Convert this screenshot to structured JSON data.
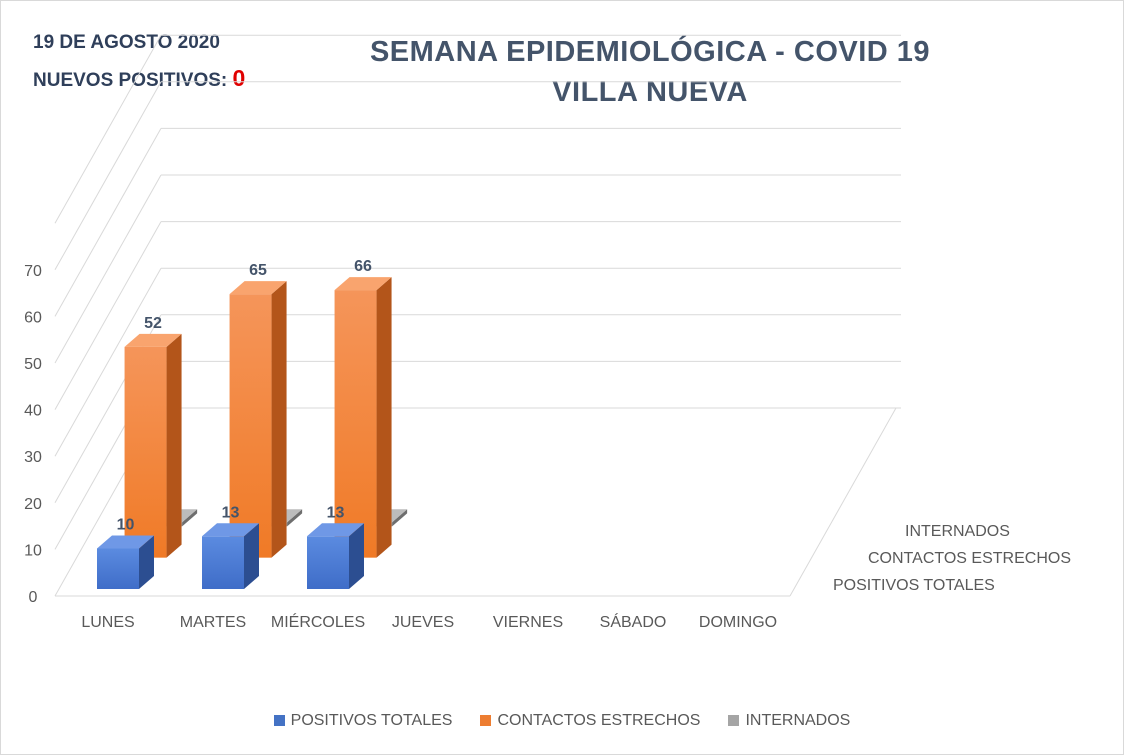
{
  "header": {
    "date": "19 DE AGOSTO 2020",
    "nuevos_label": "NUEVOS POSITIVOS: ",
    "nuevos_value": "0"
  },
  "chart_data": {
    "type": "bar",
    "title": "SEMANA EPIDEMIOLÓGICA - COVID 19",
    "subtitle": "VILLA NUEVA",
    "categories": [
      "LUNES",
      "MARTES",
      "MIÉRCOLES",
      "JUEVES",
      "VIERNES",
      "SÁBADO",
      "DOMINGO"
    ],
    "series": [
      {
        "name": "POSITIVOS TOTALES",
        "values": [
          10,
          13,
          13,
          null,
          null,
          null,
          null
        ],
        "color": "#4472c4"
      },
      {
        "name": "CONTACTOS ESTRECHOS",
        "values": [
          52,
          65,
          66,
          null,
          null,
          null,
          null
        ],
        "color": "#ed7d31"
      },
      {
        "name": "INTERNADOS",
        "values": [
          1,
          1,
          1,
          null,
          null,
          null,
          null
        ],
        "color": "#a5a5a5"
      }
    ],
    "depth_labels": [
      "INTERNADOS",
      "CONTACTOS ESTRECHOS",
      "POSITIVOS TOTALES"
    ],
    "yticks": [
      "0",
      "10",
      "20",
      "30",
      "40",
      "50",
      "60",
      "70"
    ],
    "ylim": [
      0,
      70
    ],
    "grid": true,
    "legend": "bottom"
  }
}
